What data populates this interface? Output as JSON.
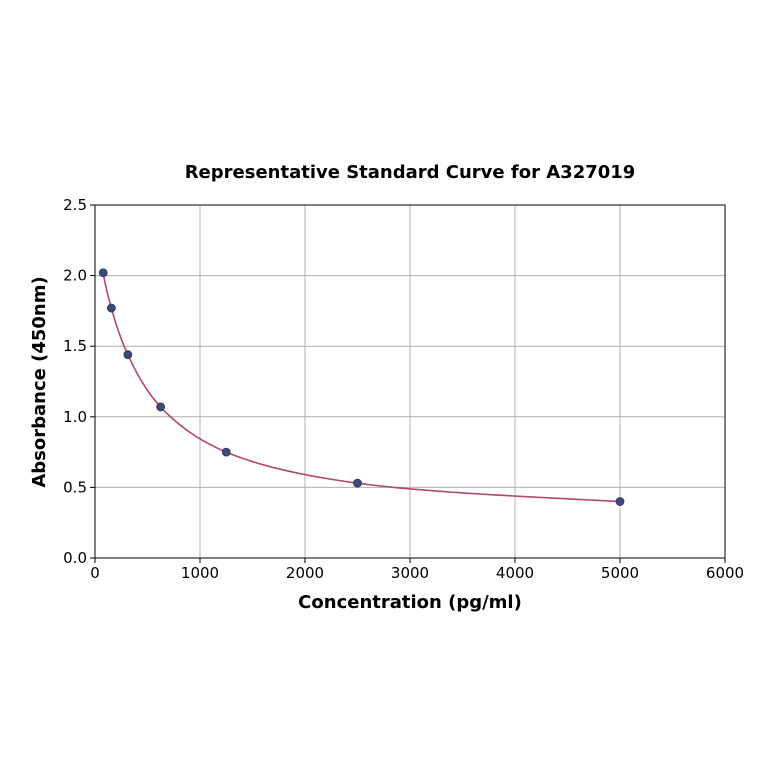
{
  "chart_data": {
    "type": "scatter",
    "title": "Representative Standard Curve for A327019",
    "xlabel": "Concentration (pg/ml)",
    "ylabel": "Absorbance (450nm)",
    "xlim": [
      0,
      6000
    ],
    "ylim": [
      0,
      2.5
    ],
    "xticks": [
      "0",
      "1000",
      "2000",
      "3000",
      "4000",
      "5000",
      "6000"
    ],
    "yticks": [
      "0.0",
      "0.5",
      "1.0",
      "1.5",
      "2.0",
      "2.5"
    ],
    "grid": true,
    "series": [
      {
        "points": [
          {
            "x": 78.125,
            "y": 2.02
          },
          {
            "x": 156.25,
            "y": 1.77
          },
          {
            "x": 312.5,
            "y": 1.44
          },
          {
            "x": 625,
            "y": 1.07
          },
          {
            "x": 1250,
            "y": 0.75
          },
          {
            "x": 2500,
            "y": 0.53
          },
          {
            "x": 5000,
            "y": 0.4
          }
        ],
        "marker_color": "#3b4a7a",
        "fit_line_color": "#b5476a"
      }
    ]
  }
}
